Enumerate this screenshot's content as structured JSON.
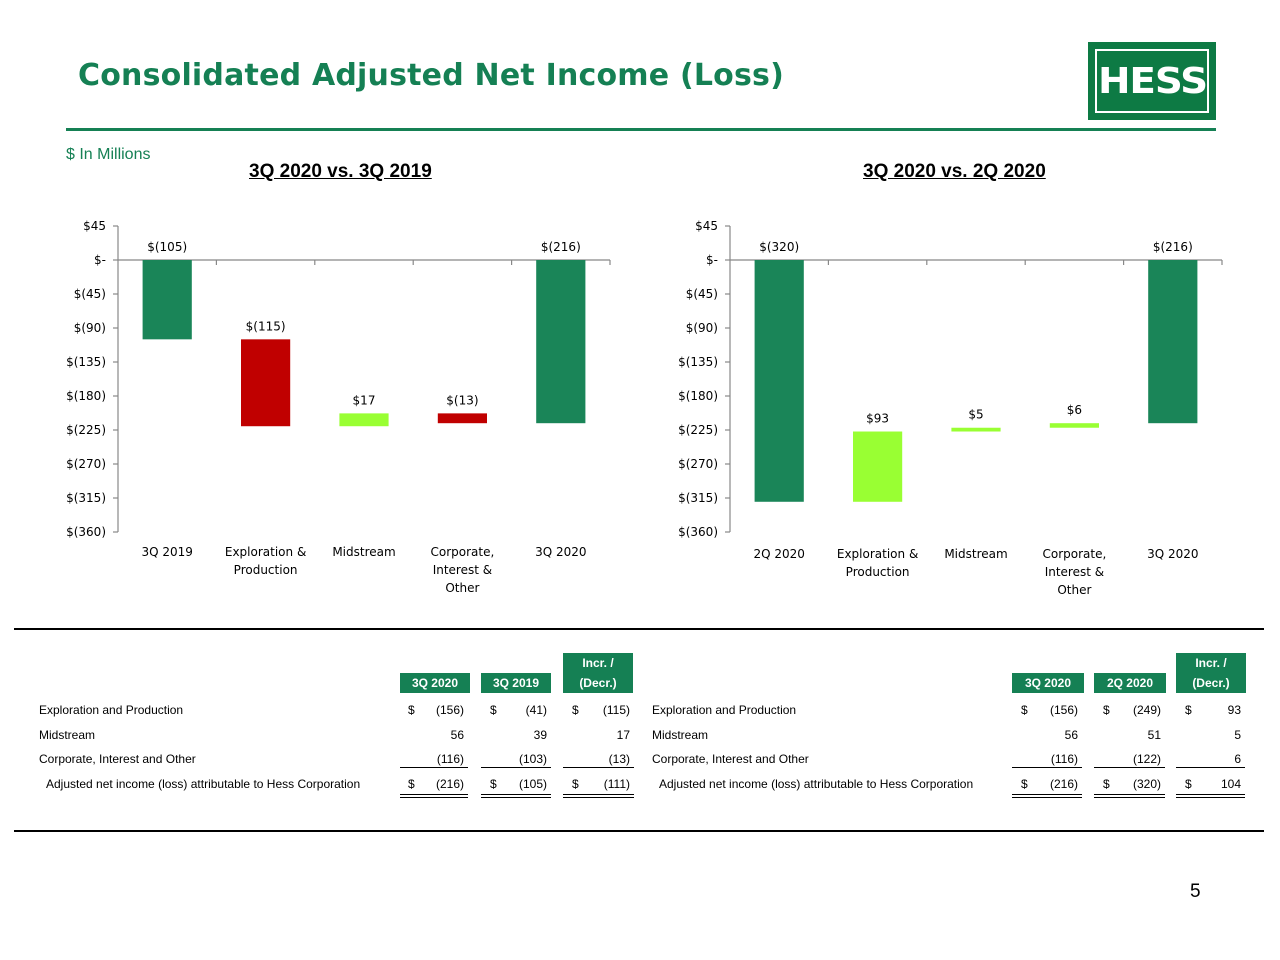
{
  "header": {
    "title": "Consolidated Adjusted Net Income (Loss)",
    "logo_text": "HESS",
    "units": "$ In Millions",
    "brand_color": "#158054"
  },
  "chart_data": [
    {
      "type": "waterfall",
      "title": "3Q 2020 vs. 3Q 2019",
      "categories": [
        "3Q 2019",
        "Exploration & Production",
        "Midstream",
        "Corporate, Interest & Other",
        "3Q 2020"
      ],
      "category_lines": [
        [
          "3Q 2019"
        ],
        [
          "Exploration &",
          "Production"
        ],
        [
          "Midstream"
        ],
        [
          "Corporate,",
          "Interest &",
          "Other"
        ],
        [
          "3Q 2020"
        ]
      ],
      "values": [
        -105,
        -115,
        17,
        -13,
        -216
      ],
      "bar_kind": [
        "total",
        "change",
        "change",
        "change",
        "total"
      ],
      "data_labels": [
        "$(105)",
        "$(115)",
        "$17",
        "$(13)",
        "$(216)"
      ],
      "y_ticks": [
        45,
        0,
        -45,
        -90,
        -135,
        -180,
        -225,
        -270,
        -315,
        -360
      ],
      "y_tick_labels": [
        "$45",
        "$-",
        "$(45)",
        "$(90)",
        "$(135)",
        "$(180)",
        "$(225)",
        "$(270)",
        "$(315)",
        "$(360)"
      ],
      "ylim": [
        -360,
        45
      ],
      "colors": {
        "total": "#1a8558",
        "decrease": "#c00000",
        "increase": "#99ff33"
      }
    },
    {
      "type": "waterfall",
      "title": "3Q 2020 vs. 2Q 2020",
      "categories": [
        "2Q 2020",
        "Exploration & Production",
        "Midstream",
        "Corporate, Interest & Other",
        "3Q 2020"
      ],
      "category_lines": [
        [
          "2Q 2020"
        ],
        [
          "Exploration &",
          "Production"
        ],
        [
          "Midstream"
        ],
        [
          "Corporate,",
          "Interest &",
          "Other"
        ],
        [
          "3Q 2020"
        ]
      ],
      "values": [
        -320,
        93,
        5,
        6,
        -216
      ],
      "bar_kind": [
        "total",
        "change",
        "change",
        "change",
        "total"
      ],
      "data_labels": [
        "$(320)",
        "$93",
        "$5",
        "$6",
        "$(216)"
      ],
      "y_ticks": [
        45,
        0,
        -45,
        -90,
        -135,
        -180,
        -225,
        -270,
        -315,
        -360
      ],
      "y_tick_labels": [
        "$45",
        "$-",
        "$(45)",
        "$(90)",
        "$(135)",
        "$(180)",
        "$(225)",
        "$(270)",
        "$(315)",
        "$(360)"
      ],
      "ylim": [
        -360,
        45
      ],
      "colors": {
        "total": "#1a8558",
        "decrease": "#c00000",
        "increase": "#99ff33"
      }
    }
  ],
  "table_left": {
    "headers": [
      "3Q 2020",
      "3Q 2019",
      "Incr. /",
      "(Decr.)"
    ],
    "rows": [
      {
        "label": "Exploration and Production",
        "d1": "$",
        "v1": "(156)",
        "d2": "$",
        "v2": "(41)",
        "d3": "$",
        "v3": "(115)"
      },
      {
        "label": "Midstream",
        "d1": "",
        "v1": "56",
        "d2": "",
        "v2": "39",
        "d3": "",
        "v3": "17"
      },
      {
        "label": "Corporate, Interest and Other",
        "d1": "",
        "v1": "(116)",
        "d2": "",
        "v2": "(103)",
        "d3": "",
        "v3": "(13)"
      },
      {
        "label": "Adjusted net income (loss) attributable to Hess Corporation",
        "d1": "$",
        "v1": "(216)",
        "d2": "$",
        "v2": "(105)",
        "d3": "$",
        "v3": "(111)"
      }
    ]
  },
  "table_right": {
    "headers": [
      "3Q 2020",
      "2Q 2020",
      "Incr. /",
      "(Decr.)"
    ],
    "rows": [
      {
        "label": "Exploration and Production",
        "d1": "$",
        "v1": "(156)",
        "d2": "$",
        "v2": "(249)",
        "d3": "$",
        "v3": "93"
      },
      {
        "label": "Midstream",
        "d1": "",
        "v1": "56",
        "d2": "",
        "v2": "51",
        "d3": "",
        "v3": "5"
      },
      {
        "label": "Corporate, Interest and Other",
        "d1": "",
        "v1": "(116)",
        "d2": "",
        "v2": "(122)",
        "d3": "",
        "v3": "6"
      },
      {
        "label": "Adjusted net income (loss) attributable to Hess Corporation",
        "d1": "$",
        "v1": "(216)",
        "d2": "$",
        "v2": "(320)",
        "d3": "$",
        "v3": "104"
      }
    ]
  },
  "page_number": "5"
}
